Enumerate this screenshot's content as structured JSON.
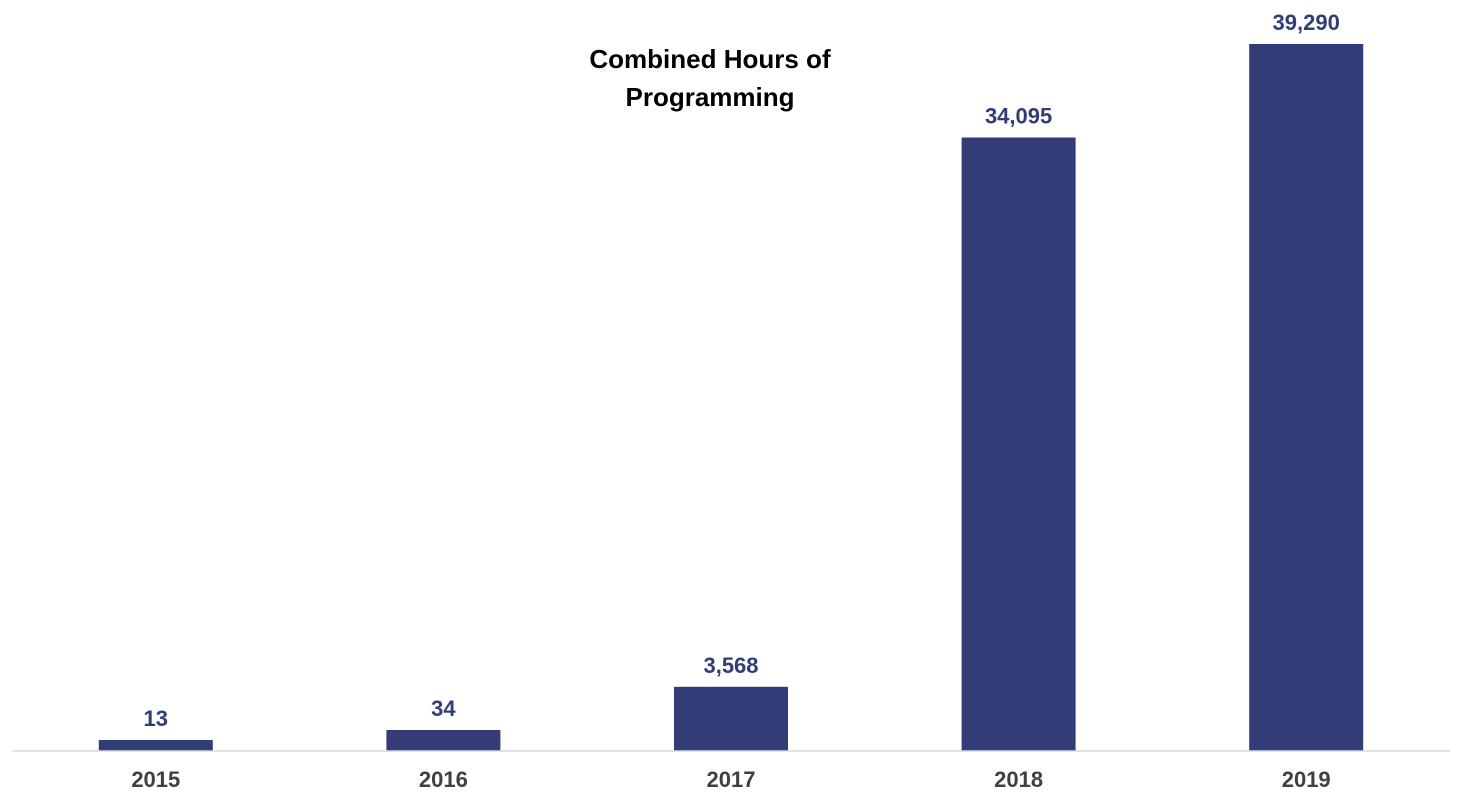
{
  "chart_data": {
    "type": "bar",
    "title_lines": [
      "Combined Hours of",
      "Programming"
    ],
    "categories": [
      "2015",
      "2016",
      "2017",
      "2018",
      "2019"
    ],
    "values": [
      13,
      34,
      3568,
      34095,
      39290
    ],
    "data_labels": [
      "13",
      "34",
      "3,568",
      "34,095",
      "39,290"
    ],
    "ylim": [
      0,
      40000
    ],
    "grid": false,
    "legend": "none",
    "colors": {
      "bar": "#323d77",
      "data_label": "#323d77",
      "axis": "#d9d9d9"
    }
  }
}
